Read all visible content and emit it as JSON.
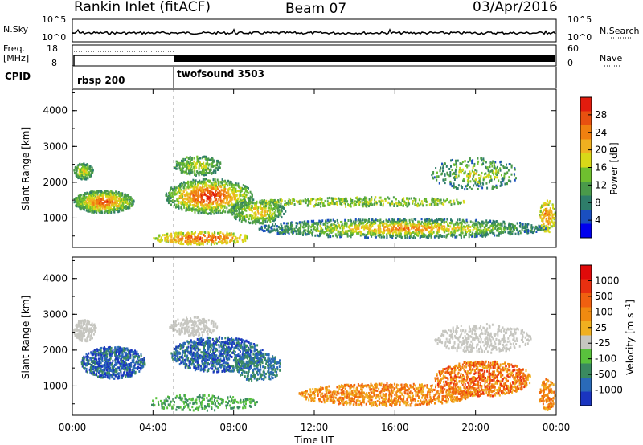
{
  "header": {
    "station": "Rankin Inlet (fitACF)",
    "beam": "Beam 07",
    "date": "03/Apr/2016"
  },
  "panels": {
    "nsky": {
      "label": "N.Sky",
      "y_top_label": "10^5",
      "y_bot_label": "10^0",
      "right_top_label": "10^5",
      "right_bot_label": "10^0",
      "right_label": "N.Search"
    },
    "freq": {
      "label_line1": "Freq.",
      "label_line2": "[MHz]",
      "y_top_label": "18",
      "y_bot_label": "8",
      "right_top_label": "60",
      "right_bot_label": "0",
      "right_label": "Nave"
    },
    "cpid": {
      "label": "CPID",
      "modes": [
        {
          "name": "rbsp 200",
          "start_hour": 0,
          "end_hour": 5
        },
        {
          "name": "twofsound 3503",
          "start_hour": 5,
          "end_hour": 24
        }
      ]
    }
  },
  "chart_data": [
    {
      "type": "heatmap",
      "name": "power",
      "ylabel": "Slant Range [km]",
      "ylim": [
        180,
        4600
      ],
      "yticks": [
        "1000",
        "2000",
        "3000",
        "4000"
      ],
      "xlim": [
        0,
        24
      ],
      "colorbar": {
        "label": "Power [dB]",
        "ticks": [
          "4",
          "8",
          "12",
          "16",
          "20",
          "24",
          "28"
        ],
        "colors": [
          "#0000ee",
          "#1a4fbf",
          "#2e7d6a",
          "#4a9a4a",
          "#6fbf2f",
          "#d8d818",
          "#f0b020",
          "#f08010",
          "#e85010",
          "#e21c0e"
        ]
      }
    },
    {
      "type": "heatmap",
      "name": "velocity",
      "ylabel": "Slant Range [km]",
      "ylim": [
        180,
        4600
      ],
      "yticks": [
        "1000",
        "2000",
        "3000",
        "4000"
      ],
      "xlabel": "Time UT",
      "xticks": [
        "00:00",
        "04:00",
        "08:00",
        "12:00",
        "16:00",
        "20:00",
        "00:00"
      ],
      "xlim": [
        0,
        24
      ],
      "colorbar": {
        "label": "Velocity [m s^-1]",
        "ticks": [
          "1000",
          "500",
          "100",
          "25",
          "-25",
          "-100",
          "-500",
          "-1000"
        ],
        "colors": [
          "#1a35c0",
          "#2a6ab8",
          "#3a8a60",
          "#59c23d",
          "#c6c6c0",
          "#f0b020",
          "#f08a10",
          "#f06010",
          "#e83010",
          "#e00a0a"
        ]
      }
    }
  ]
}
